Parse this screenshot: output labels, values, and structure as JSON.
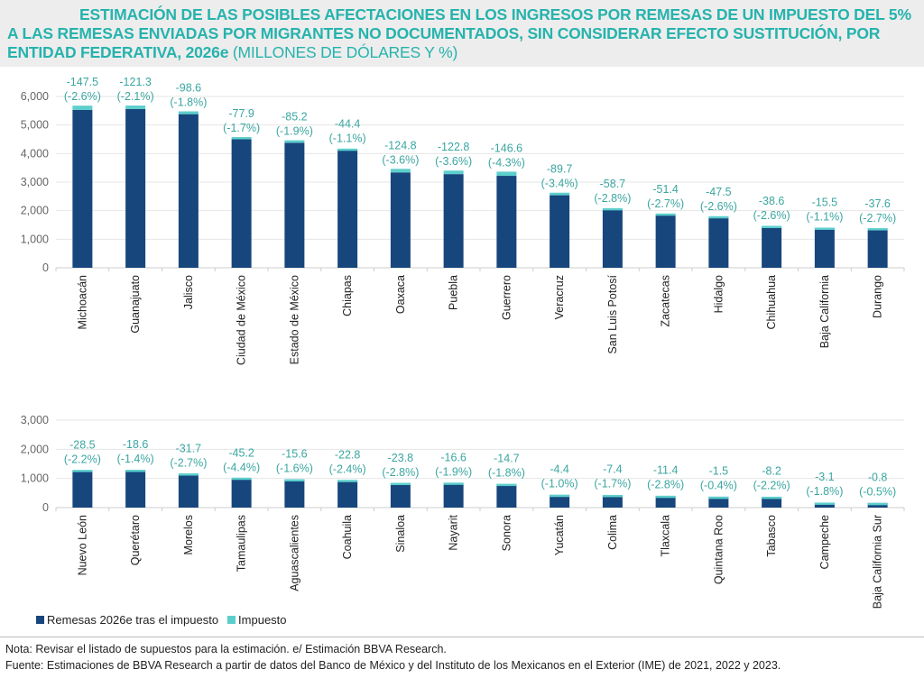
{
  "title": {
    "main": "ESTIMACIÓN DE LAS POSIBLES AFECTACIONES EN LOS INGRESOS POR REMESAS DE UN IMPUESTO DEL 5% A LAS REMESAS ENVIADAS POR MIGRANTES NO DOCUMENTADOS, SIN CONSIDERAR EFECTO SUSTITUCIÓN, POR ENTIDAD FEDERATIVA, 2026e",
    "unit": "(MILLONES DE DÓLARES Y %)"
  },
  "colors": {
    "remesas": "#17467d",
    "impuesto": "#5ccfcc",
    "title": "#26b3ad",
    "labels": "#3aa6a0"
  },
  "chart_data": [
    {
      "type": "bar",
      "stacked": true,
      "ylim": [
        0,
        6000
      ],
      "yticks": [
        "0",
        "1,000",
        "2,000",
        "3,000",
        "4,000",
        "5,000",
        "6,000"
      ],
      "ytick_values": [
        0,
        1000,
        2000,
        3000,
        4000,
        5000,
        6000
      ],
      "grid": true,
      "categories": [
        "Michoacán",
        "Guanajuato",
        "Jalisco",
        "Ciudad de México",
        "Estado de México",
        "Chiapas",
        "Oaxaca",
        "Puebla",
        "Guerrero",
        "Veracruz",
        "San Luis Potosí",
        "Zacatecas",
        "Hidalgo",
        "Chihuahua",
        "Baja California",
        "Durango"
      ],
      "series": [
        {
          "name": "Remesas 2026e tras el impuesto",
          "values": [
            5530,
            5560,
            5380,
            4500,
            4380,
            4130,
            3340,
            3280,
            3220,
            2540,
            2030,
            1850,
            1760,
            1430,
            1390,
            1350
          ]
        },
        {
          "name": "Impuesto",
          "values": [
            147.5,
            121.3,
            98.6,
            77.9,
            85.2,
            44.4,
            124.8,
            122.8,
            146.6,
            89.7,
            58.7,
            51.4,
            47.5,
            38.6,
            15.5,
            37.6
          ]
        }
      ],
      "data_labels": [
        [
          "-147.5",
          "(-2.6%)"
        ],
        [
          "-121.3",
          "(-2.1%)"
        ],
        [
          "-98.6",
          "(-1.8%)"
        ],
        [
          "-77.9",
          "(-1.7%)"
        ],
        [
          "-85.2",
          "(-1.9%)"
        ],
        [
          "-44.4",
          "(-1.1%)"
        ],
        [
          "-124.8",
          "(-3.6%)"
        ],
        [
          "-122.8",
          "(-3.6%)"
        ],
        [
          "-146.6",
          "(-4.3%)"
        ],
        [
          "-89.7",
          "(-3.4%)"
        ],
        [
          "-58.7",
          "(-2.8%)"
        ],
        [
          "-51.4",
          "(-2.7%)"
        ],
        [
          "-47.5",
          "(-2.6%)"
        ],
        [
          "-38.6",
          "(-2.6%)"
        ],
        [
          "-15.5",
          "(-1.1%)"
        ],
        [
          "-37.6",
          "(-2.7%)"
        ]
      ]
    },
    {
      "type": "bar",
      "stacked": true,
      "ylim": [
        0,
        3000
      ],
      "yticks": [
        "0",
        "1,000",
        "2,000",
        "3,000"
      ],
      "ytick_values": [
        0,
        1000,
        2000,
        3000
      ],
      "grid": true,
      "categories": [
        "Nuevo León",
        "Querétaro",
        "Morelos",
        "Tamaulipas",
        "Aguascalientes",
        "Coahuila",
        "Sinaloa",
        "Nayarit",
        "Sonora",
        "Yucatán",
        "Colima",
        "Tlaxcala",
        "Quintana Roo",
        "Tabasco",
        "Campeche",
        "Baja California Sur"
      ],
      "series": [
        {
          "name": "Remesas 2026e tras el impuesto",
          "values": [
            1267,
            1280,
            1142,
            982,
            959,
            927,
            826,
            840,
            802,
            436,
            428,
            396,
            373,
            365,
            169,
            159
          ]
        },
        {
          "name": "Impuesto",
          "values": [
            28.5,
            18.6,
            31.7,
            45.2,
            15.6,
            22.8,
            23.8,
            16.6,
            14.7,
            4.4,
            7.4,
            11.4,
            1.5,
            8.2,
            3.1,
            0.8
          ]
        }
      ],
      "data_labels": [
        [
          "-28.5",
          "(-2.2%)"
        ],
        [
          "-18.6",
          "(-1.4%)"
        ],
        [
          "-31.7",
          "(-2.7%)"
        ],
        [
          "-45.2",
          "(-4.4%)"
        ],
        [
          "-15.6",
          "(-1.6%)"
        ],
        [
          "-22.8",
          "(-2.4%)"
        ],
        [
          "-23.8",
          "(-2.8%)"
        ],
        [
          "-16.6",
          "(-1.9%)"
        ],
        [
          "-14.7",
          "(-1.8%)"
        ],
        [
          "-4.4",
          "(-1.0%)"
        ],
        [
          "-7.4",
          "(-1.7%)"
        ],
        [
          "-11.4",
          "(-2.8%)"
        ],
        [
          "-1.5",
          "(-0.4%)"
        ],
        [
          "-8.2",
          "(-2.2%)"
        ],
        [
          "-3.1",
          "(-1.8%)"
        ],
        [
          "-0.8",
          "(-0.5%)"
        ]
      ]
    }
  ],
  "legend": {
    "remesas": "Remesas 2026e tras el impuesto",
    "impuesto": "Impuesto"
  },
  "notes": {
    "nota": "Nota: Revisar el listado de supuestos para la estimación. e/ Estimación BBVA Research.",
    "fuente": "Fuente: Estimaciones de BBVA Research a partir de datos del Banco de México y del Instituto de los Mexicanos en el Exterior (IME) de 2021, 2022 y 2023."
  }
}
